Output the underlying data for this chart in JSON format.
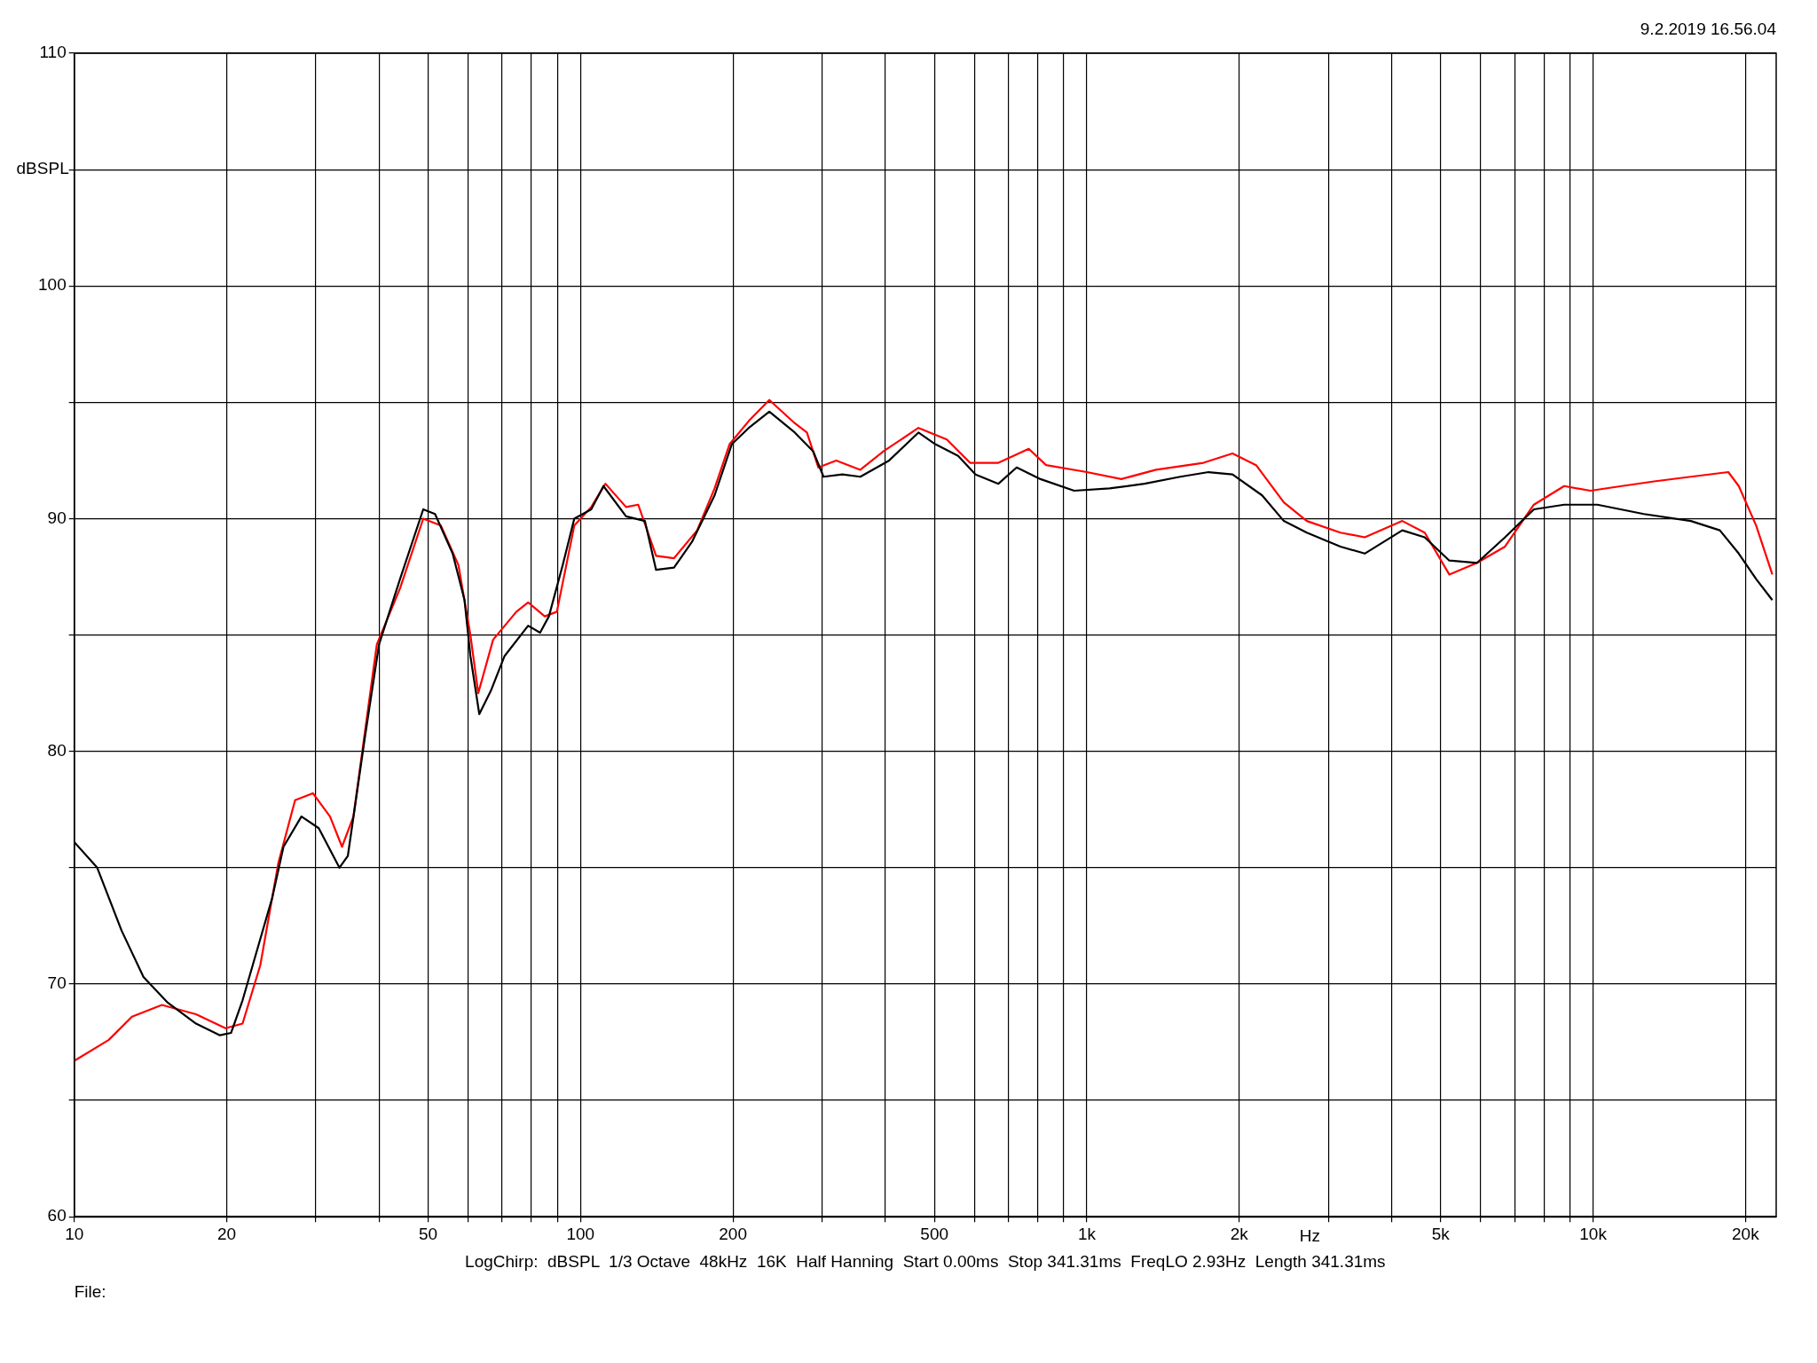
{
  "chart_data": {
    "type": "line",
    "xlabel": "Hz",
    "ylabel": "dBSPL",
    "log": "x",
    "grid": true,
    "legend": false,
    "marker": "none",
    "line_style": "solid",
    "xlim": [
      10,
      23000
    ],
    "ylim": [
      60,
      110
    ],
    "xticks": [
      10,
      20,
      {
        "value": 30,
        "label": null
      },
      {
        "value": 40,
        "label": null
      },
      50,
      {
        "value": 60,
        "label": null
      },
      {
        "value": 70,
        "label": null
      },
      {
        "value": 80,
        "label": null
      },
      {
        "value": 90,
        "label": null
      },
      100,
      200,
      {
        "value": 300,
        "label": null
      },
      {
        "value": 400,
        "label": null
      },
      500,
      {
        "value": 600,
        "label": null
      },
      {
        "value": 700,
        "label": null
      },
      {
        "value": 800,
        "label": null
      },
      {
        "value": 900,
        "label": null
      },
      {
        "value": 1000,
        "label": "1k"
      },
      {
        "value": 2000,
        "label": "2k"
      },
      {
        "value": 3000,
        "label": null
      },
      {
        "value": 4000,
        "label": null
      },
      {
        "value": 5000,
        "label": "5k"
      },
      {
        "value": 6000,
        "label": null
      },
      {
        "value": 7000,
        "label": null
      },
      {
        "value": 8000,
        "label": null
      },
      {
        "value": 9000,
        "label": null
      },
      {
        "value": 10000,
        "label": "10k"
      },
      {
        "value": 20000,
        "label": "20k"
      }
    ],
    "yticks": [
      60,
      {
        "value": 65,
        "label": null
      },
      70,
      {
        "value": 75,
        "label": null
      },
      80,
      {
        "value": 85,
        "label": null
      },
      90,
      {
        "value": 95,
        "label": null
      },
      100,
      {
        "value": 105,
        "label": null
      },
      110
    ],
    "annotations": [
      "9.2.2019 16.56.04",
      "LogChirp:  dBSPL  1/3 Octave  48kHz  16K  Half Hanning  Start 0.00ms  Stop 341.31ms  FreqLO 2.93Hz  Length 341.31ms",
      "File:"
    ],
    "series": [
      {
        "color": "#000000",
        "x": [
          10,
          11.1,
          12.4,
          13.7,
          15.3,
          17.4,
          19.4,
          20.4,
          21.5,
          24.6,
          25.9,
          28.1,
          30.4,
          33.4,
          34.7,
          37.5,
          40,
          44,
          48.9,
          51.6,
          55.9,
          59,
          60.6,
          63.1,
          66.5,
          70.8,
          78.8,
          83.2,
          86.6,
          92.2,
          97.2,
          105,
          111,
          123,
          134,
          141,
          153,
          166,
          184,
          199,
          215,
          236,
          265,
          288,
          302,
          329,
          357,
          407,
          465,
          502,
          557,
          603,
          669,
          727,
          810,
          944,
          1109,
          1300,
          1530,
          1740,
          1940,
          2220,
          2450,
          2720,
          3170,
          3540,
          4200,
          4650,
          5200,
          5900,
          6700,
          7640,
          8770,
          10200,
          12600,
          15600,
          17800,
          19400,
          21000,
          22600
        ],
        "values": [
          76.1,
          75.0,
          72.3,
          70.3,
          69.2,
          68.3,
          67.8,
          67.9,
          69.3,
          73.7,
          75.9,
          77.2,
          76.7,
          75.0,
          75.5,
          80.6,
          84.6,
          87.4,
          90.4,
          90.2,
          88.5,
          86.5,
          84.1,
          81.6,
          82.6,
          84.1,
          85.4,
          85.1,
          85.8,
          88.0,
          90.0,
          90.4,
          91.4,
          90.1,
          89.9,
          87.8,
          87.9,
          89.0,
          91.0,
          93.2,
          93.9,
          94.6,
          93.7,
          92.9,
          91.8,
          91.9,
          91.8,
          92.5,
          93.7,
          93.2,
          92.7,
          91.9,
          91.5,
          92.2,
          91.7,
          91.2,
          91.3,
          91.5,
          91.8,
          92.0,
          91.9,
          91.0,
          89.9,
          89.4,
          88.8,
          88.5,
          89.5,
          89.2,
          88.2,
          88.1,
          89.2,
          90.4,
          90.6,
          90.6,
          90.2,
          89.9,
          89.5,
          88.5,
          87.4,
          86.5
        ]
      },
      {
        "color": "#ff0000",
        "x": [
          10,
          11.7,
          13,
          14.9,
          17.4,
          19.9,
          21.5,
          23.3,
          25.3,
          27.3,
          29.6,
          32,
          33.8,
          35.6,
          39.6,
          44,
          48.9,
          53,
          57.4,
          60.6,
          62.8,
          67.2,
          74.7,
          78.8,
          85,
          89.8,
          97.2,
          105,
          112,
          123,
          130,
          141,
          153,
          170,
          184,
          197,
          215,
          236,
          265,
          280,
          295,
          320,
          357,
          397,
          465,
          529,
          588,
          669,
          768,
          831,
          1000,
          1170,
          1370,
          1700,
          1940,
          2160,
          2450,
          2720,
          3170,
          3540,
          4200,
          4650,
          5200,
          5900,
          6700,
          7640,
          8770,
          9880,
          11400,
          13200,
          15600,
          18500,
          19400,
          21000,
          22600
        ],
        "values": [
          66.7,
          67.6,
          68.6,
          69.1,
          68.7,
          68.1,
          68.3,
          70.8,
          75.2,
          77.9,
          78.2,
          77.2,
          75.9,
          77.2,
          84.6,
          87.0,
          90.0,
          89.7,
          88.0,
          85.0,
          82.5,
          84.8,
          86.0,
          86.4,
          85.8,
          86.0,
          89.7,
          90.5,
          91.5,
          90.5,
          90.6,
          88.4,
          88.3,
          89.5,
          91.3,
          93.2,
          94.2,
          95.1,
          94.1,
          93.7,
          92.2,
          92.5,
          92.1,
          92.9,
          93.9,
          93.4,
          92.4,
          92.4,
          93.0,
          92.3,
          92.0,
          91.7,
          92.1,
          92.4,
          92.8,
          92.3,
          90.7,
          89.9,
          89.4,
          89.2,
          89.9,
          89.4,
          87.6,
          88.1,
          88.8,
          90.6,
          91.4,
          91.2,
          91.4,
          91.6,
          91.8,
          92.0,
          91.4,
          89.7,
          87.6
        ]
      }
    ]
  }
}
